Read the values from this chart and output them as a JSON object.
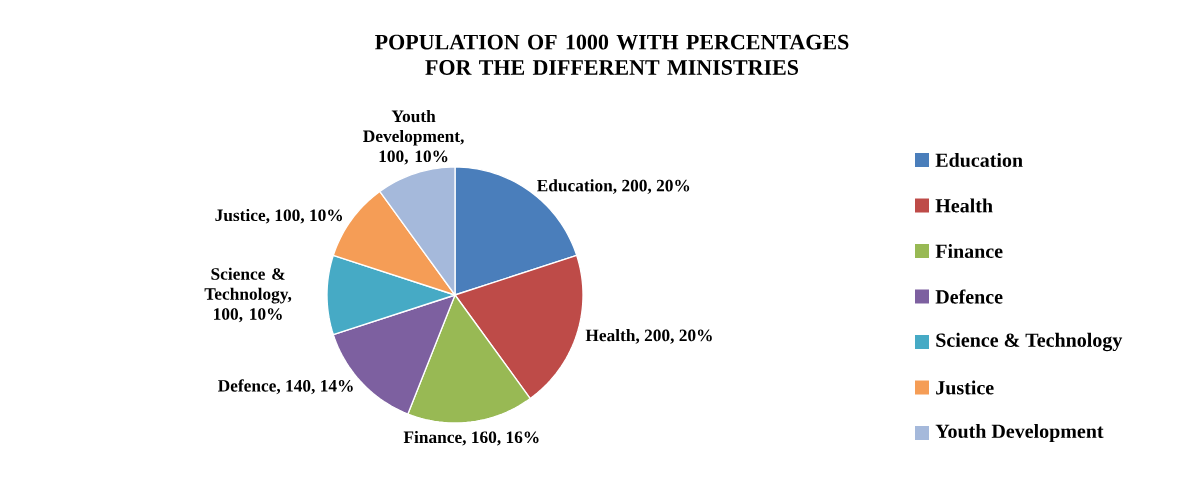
{
  "chart_data": {
    "type": "pie",
    "title": "POPULATION OF 1000 WITH PERCENTAGES FOR THE DIFFERENT MINISTRIES",
    "categories": [
      "Education",
      "Health",
      "Finance",
      "Defence",
      "Science & Technology",
      "Justice",
      "Youth Development"
    ],
    "values": [
      200,
      200,
      160,
      140,
      100,
      100,
      100
    ],
    "colors": [
      "#4a7ebb",
      "#be4b48",
      "#98b954",
      "#7d60a0",
      "#46aac5",
      "#f59d56",
      "#a5b9db"
    ],
    "value_labels": [
      "Education, 200, 20%",
      "Health, 200, 20%",
      "Finance, 160, 16%",
      "Defence, 140, 14%",
      "Science & Technology, 100, 10%",
      "Justice, 100, 10%",
      "Youth Development, 100, 10%"
    ],
    "legend": "right"
  }
}
